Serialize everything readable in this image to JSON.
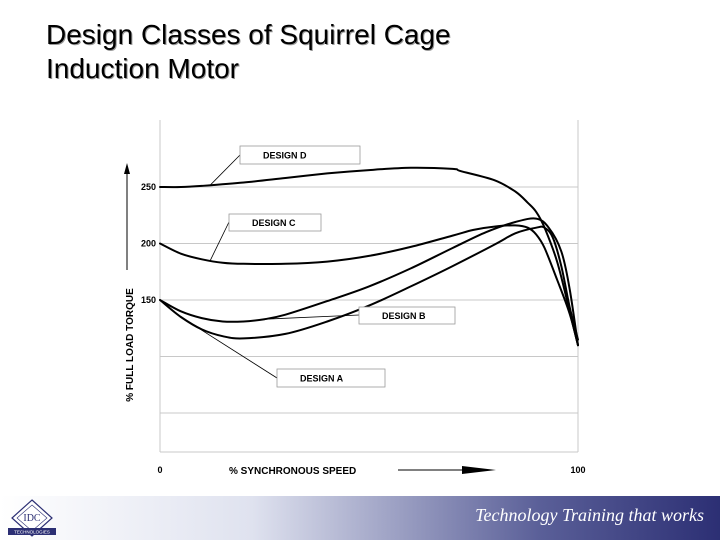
{
  "slide": {
    "title_line1": "Design Classes of Squirrel Cage",
    "title_line2": "Induction Motor"
  },
  "footer": {
    "tagline": "Technology Training that works",
    "logo_text": "IDC",
    "logo_subtext": "TECHNOLOGIES"
  },
  "colors": {
    "curves": "#000000",
    "gridlines": "#c8c8c8",
    "footer_gradient_end": "#2c2f74"
  },
  "chart_data": {
    "type": "line",
    "title": "",
    "xlabel": "% SYNCHRONOUS SPEED",
    "ylabel": "% FULL LOAD TORQUE",
    "xlim": [
      0,
      100
    ],
    "x_tick_labels": [
      "0",
      "100"
    ],
    "y_tick_labels": [
      "250",
      "200",
      "150"
    ],
    "grid": true,
    "series": [
      {
        "name": "DESIGN D",
        "x": [
          0,
          5,
          10,
          20,
          30,
          40,
          50,
          60,
          70,
          72,
          80,
          85,
          88,
          90,
          92,
          95,
          98,
          100
        ],
        "y": [
          250,
          250,
          251,
          254,
          258,
          262,
          265,
          267,
          266,
          264,
          256,
          246,
          236,
          228,
          214,
          184,
          140,
          110
        ]
      },
      {
        "name": "DESIGN C",
        "x": [
          0,
          5,
          10,
          15,
          20,
          30,
          40,
          50,
          60,
          70,
          75,
          80,
          85,
          88,
          90,
          92,
          95,
          98,
          100
        ],
        "y": [
          200,
          191,
          186,
          183,
          182,
          182,
          184,
          189,
          197,
          207,
          212,
          215,
          216,
          214,
          208,
          196,
          168,
          138,
          110
        ]
      },
      {
        "name": "DESIGN B",
        "x": [
          0,
          5,
          10,
          15,
          20,
          25,
          30,
          40,
          50,
          60,
          70,
          78,
          85,
          90,
          93,
          96,
          98,
          100
        ],
        "y": [
          150,
          140,
          134,
          131,
          131,
          133,
          137,
          149,
          162,
          178,
          196,
          210,
          219,
          222,
          214,
          193,
          160,
          110
        ]
      },
      {
        "name": "DESIGN A",
        "x": [
          0,
          5,
          10,
          15,
          20,
          30,
          40,
          50,
          60,
          70,
          80,
          85,
          90,
          92,
          94,
          96,
          98,
          100
        ],
        "y": [
          150,
          135,
          124,
          118,
          116,
          120,
          131,
          145,
          162,
          180,
          199,
          209,
          214,
          214,
          205,
          180,
          144,
          115
        ]
      }
    ]
  }
}
